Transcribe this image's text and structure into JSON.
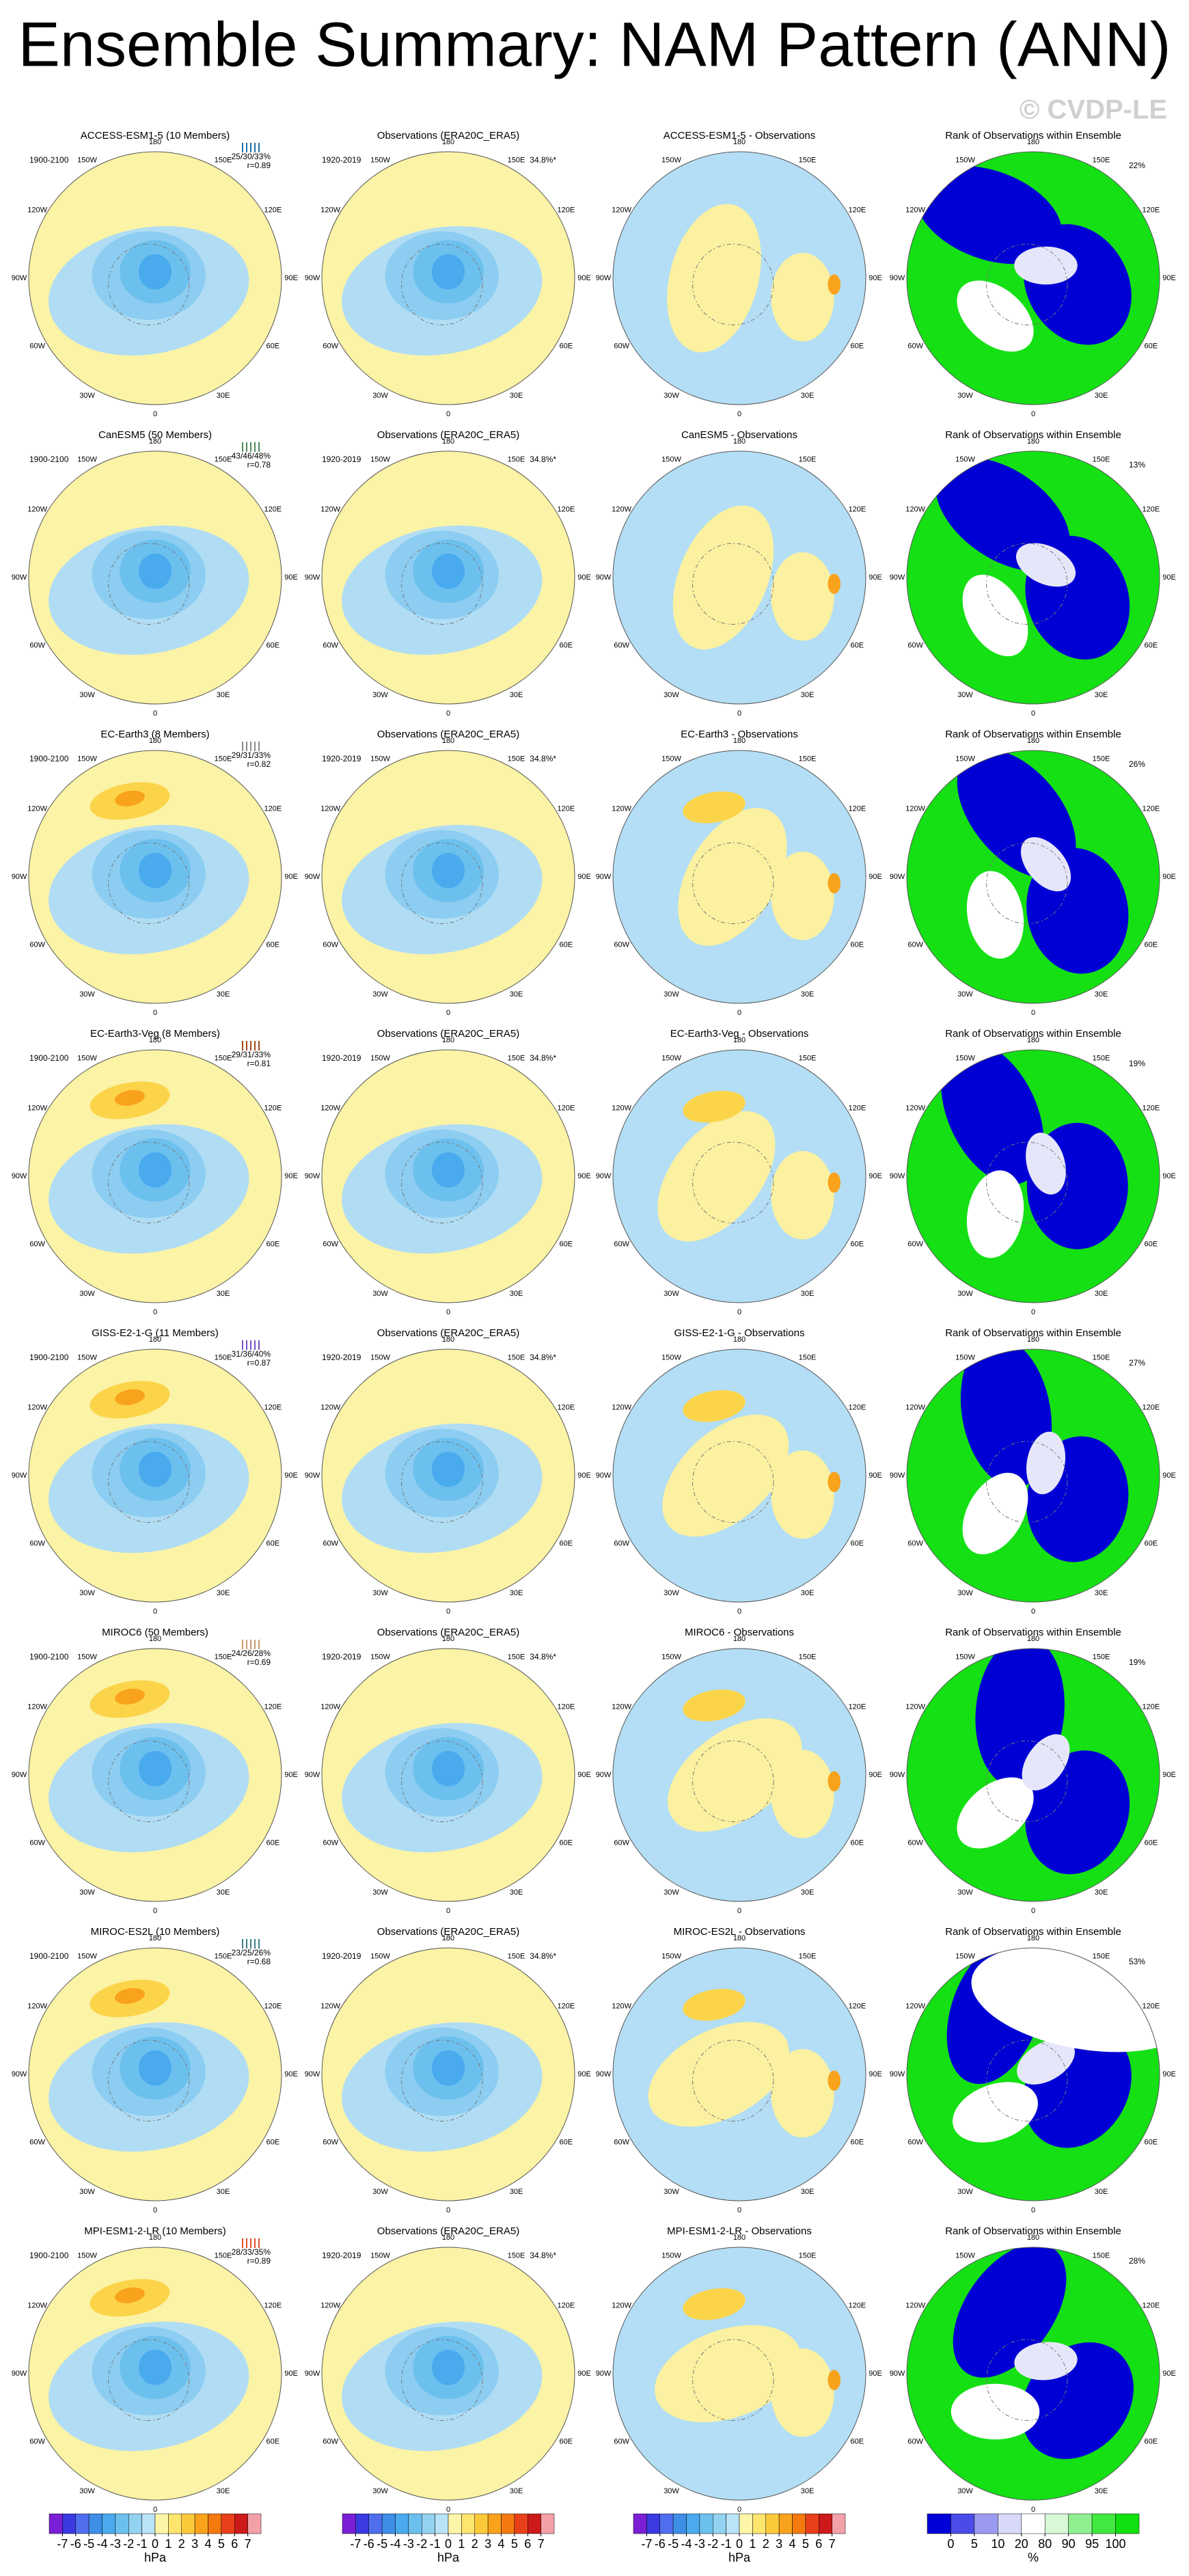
{
  "title": "Ensemble Summary: NAM Pattern (ANN)",
  "watermark": "© CVDP-LE",
  "lon_labels": [
    "180",
    "150E",
    "120E",
    "90E",
    "60E",
    "30E",
    "0",
    "30W",
    "60W",
    "90W",
    "120W",
    "150W"
  ],
  "rows": [
    {
      "model": "ACCESS-ESM1-5 (10 Members)",
      "color": "#1f6fa8",
      "period": "1900-2100",
      "stats": "25/30/33%",
      "r": "r=0.89",
      "obs_title": "Observations (ERA20C_ERA5)",
      "obs_period": "1920-2019",
      "obs_pct": "34.8%*",
      "diff_title": "ACCESS-ESM1-5 - Observations",
      "rank_title": "Rank of Observations within Ensemble",
      "rank_pct": "22%"
    },
    {
      "model": "CanESM5 (50 Members)",
      "color": "#4f8a5c",
      "period": "1900-2100",
      "stats": "43/46/48%",
      "r": "r=0.78",
      "obs_title": "Observations (ERA20C_ERA5)",
      "obs_period": "1920-2019",
      "obs_pct": "34.8%*",
      "diff_title": "CanESM5 - Observations",
      "rank_title": "Rank of Observations within Ensemble",
      "rank_pct": "13%"
    },
    {
      "model": "EC-Earth3 (8 Members)",
      "color": "#8a8a8a",
      "period": "1900-2100",
      "stats": "29/31/33%",
      "r": "r=0.82",
      "obs_title": "Observations (ERA20C_ERA5)",
      "obs_period": "1920-2019",
      "obs_pct": "34.8%*",
      "diff_title": "EC-Earth3 - Observations",
      "rank_title": "Rank of Observations within Ensemble",
      "rank_pct": "26%"
    },
    {
      "model": "EC-Earth3-Veg (8 Members)",
      "color": "#a0461a",
      "period": "1900-2100",
      "stats": "29/31/33%",
      "r": "r=0.81",
      "obs_title": "Observations (ERA20C_ERA5)",
      "obs_period": "1920-2019",
      "obs_pct": "34.8%*",
      "diff_title": "EC-Earth3-Veg - Observations",
      "rank_title": "Rank of Observations within Ensemble",
      "rank_pct": "19%"
    },
    {
      "model": "GISS-E2-1-G (11 Members)",
      "color": "#7a4fc8",
      "period": "1900-2100",
      "stats": "31/36/40%",
      "r": "r=0.87",
      "obs_title": "Observations (ERA20C_ERA5)",
      "obs_period": "1920-2019",
      "obs_pct": "34.8%*",
      "diff_title": "GISS-E2-1-G - Observations",
      "rank_title": "Rank of Observations within Ensemble",
      "rank_pct": "27%"
    },
    {
      "model": "MIROC6 (50 Members)",
      "color": "#c89a6a",
      "period": "1900-2100",
      "stats": "24/26/28%",
      "r": "r=0.69",
      "obs_title": "Observations (ERA20C_ERA5)",
      "obs_period": "1920-2019",
      "obs_pct": "34.8%*",
      "diff_title": "MIROC6 - Observations",
      "rank_title": "Rank of Observations within Ensemble",
      "rank_pct": "19%"
    },
    {
      "model": "MIROC-ES2L (10 Members)",
      "color": "#3a7f8a",
      "period": "1900-2100",
      "stats": "23/25/26%",
      "r": "r=0.68",
      "obs_title": "Observations (ERA20C_ERA5)",
      "obs_period": "1920-2019",
      "obs_pct": "34.8%*",
      "diff_title": "MIROC-ES2L - Observations",
      "rank_title": "Rank of Observations within Ensemble",
      "rank_pct": "53%"
    },
    {
      "model": "MPI-ESM1-2-LR (10 Members)",
      "color": "#e0502a",
      "period": "1900-2100",
      "stats": "28/33/35%",
      "r": "r=0.89",
      "obs_title": "Observations (ERA20C_ERA5)",
      "obs_period": "1920-2019",
      "obs_pct": "34.8%*",
      "diff_title": "MPI-ESM1-2-LR - Observations",
      "rank_title": "Rank of Observations within Ensemble",
      "rank_pct": "28%"
    }
  ],
  "colorbars": [
    {
      "ticks": [
        -7,
        -6,
        -5,
        -4,
        -3,
        -2,
        -1,
        0,
        1,
        2,
        3,
        4,
        5,
        6,
        7
      ],
      "unit": "hPa",
      "colors": [
        "#7a1fd6",
        "#3a3ae0",
        "#4f6fee",
        "#3e8ee8",
        "#49aaee",
        "#6cc0ee",
        "#94d2f2",
        "#b9e3f7",
        "#fdf6a8",
        "#fde56e",
        "#fcc93a",
        "#f9a21c",
        "#f47a10",
        "#e8401a",
        "#cc1a1a",
        "#f4a0a8"
      ]
    },
    {
      "ticks": [
        -7,
        -6,
        -5,
        -4,
        -3,
        -2,
        -1,
        0,
        1,
        2,
        3,
        4,
        5,
        6,
        7
      ],
      "unit": "hPa",
      "colors": [
        "#7a1fd6",
        "#3a3ae0",
        "#4f6fee",
        "#3e8ee8",
        "#49aaee",
        "#6cc0ee",
        "#94d2f2",
        "#b9e3f7",
        "#fdf6a8",
        "#fde56e",
        "#fcc93a",
        "#f9a21c",
        "#f47a10",
        "#e8401a",
        "#cc1a1a",
        "#f4a0a8"
      ]
    },
    {
      "ticks": [
        -7,
        -6,
        -5,
        -4,
        -3,
        -2,
        -1,
        0,
        1,
        2,
        3,
        4,
        5,
        6,
        7
      ],
      "unit": "hPa",
      "colors": [
        "#7a1fd6",
        "#3a3ae0",
        "#4f6fee",
        "#3e8ee8",
        "#49aaee",
        "#6cc0ee",
        "#94d2f2",
        "#b9e3f7",
        "#fdf6a8",
        "#fde56e",
        "#fcc93a",
        "#f9a21c",
        "#f47a10",
        "#e8401a",
        "#cc1a1a",
        "#f4a0a8"
      ]
    },
    {
      "ticks": [
        0,
        5,
        10,
        20,
        80,
        90,
        95,
        100
      ],
      "unit": "%",
      "colors": [
        "#0000d8",
        "#4b4bea",
        "#9a9af0",
        "#d8d8f8",
        "#ffffff",
        "#d8f8d8",
        "#90f090",
        "#40e840",
        "#10e010"
      ]
    }
  ]
}
